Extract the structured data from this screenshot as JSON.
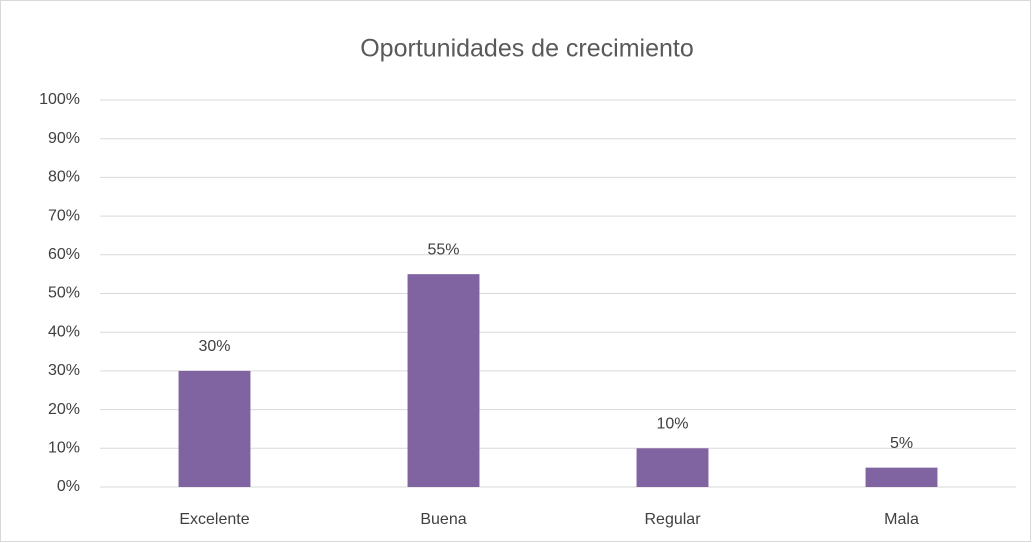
{
  "chart_data": {
    "type": "bar",
    "title": "Oportunidades de crecimiento",
    "categories": [
      "Excelente",
      "Buena",
      "Regular",
      "Mala"
    ],
    "values": [
      30,
      55,
      10,
      5
    ],
    "value_labels": [
      "30%",
      "55%",
      "10%",
      "5%"
    ],
    "color": "#8064a2",
    "ylim": [
      0,
      100
    ],
    "yticks": [
      {
        "value": 0,
        "label": "0%"
      },
      {
        "value": 10,
        "label": "10%"
      },
      {
        "value": 20,
        "label": "20%"
      },
      {
        "value": 30,
        "label": "30%"
      },
      {
        "value": 40,
        "label": "40%"
      },
      {
        "value": 50,
        "label": "50%"
      },
      {
        "value": 60,
        "label": "60%"
      },
      {
        "value": 70,
        "label": "70%"
      },
      {
        "value": 80,
        "label": "80%"
      },
      {
        "value": 90,
        "label": "90%"
      },
      {
        "value": 100,
        "label": "100%"
      }
    ],
    "grid": true
  }
}
